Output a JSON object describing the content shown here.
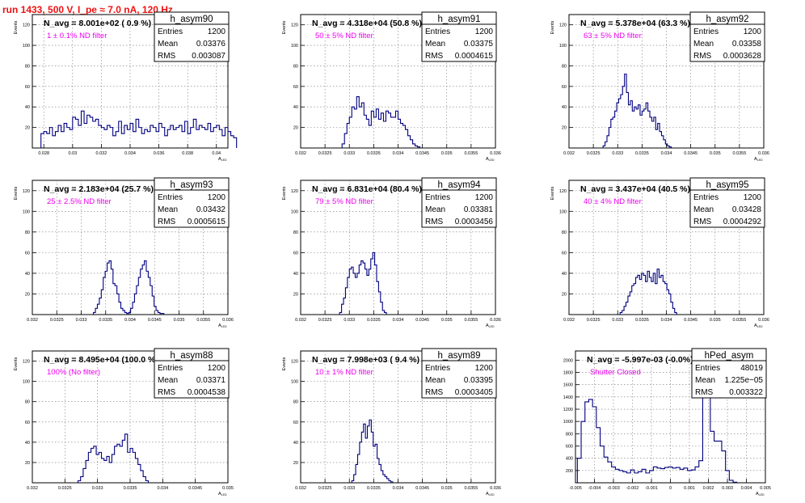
{
  "run_title": "run 1433,   500 V, I_pe ≈ 7.0 nA, 120 Hz",
  "chart_data": [
    {
      "type": "bar",
      "name": "h_asym90",
      "n_avg_label": "N_avg = 8.001e+02 ( 0.9 %)",
      "filter_label": "1 ± 0.1% ND filter",
      "stats": {
        "entries": "1200",
        "mean": "0.03376",
        "rms": "0.003087"
      },
      "xlabel": "A_LED",
      "ylabel": "Events",
      "x_ticks": [
        "0.028",
        "0.03",
        "0.032",
        "0.034",
        "0.036",
        "0.038",
        "0.04"
      ],
      "y_ticks": [
        "20",
        "40",
        "60",
        "80",
        "100",
        "120"
      ],
      "xlim": [
        0.0272,
        0.0408
      ],
      "ylim": [
        0,
        130
      ],
      "bins_x0": 0.0278,
      "bins_width": 0.0002,
      "values": [
        14,
        16,
        14,
        20,
        12,
        16,
        22,
        16,
        24,
        20,
        18,
        30,
        28,
        22,
        36,
        24,
        32,
        30,
        26,
        28,
        22,
        20,
        18,
        22,
        20,
        12,
        16,
        26,
        14,
        22,
        18,
        24,
        16,
        28,
        20,
        14,
        18,
        16,
        22,
        20,
        16,
        24,
        20,
        12,
        18,
        22,
        18,
        20,
        22,
        16,
        26,
        14,
        20,
        28,
        18,
        22,
        20,
        18,
        24,
        16,
        20,
        22,
        18,
        12,
        20,
        16,
        12,
        10
      ]
    },
    {
      "type": "bar",
      "name": "h_asym91",
      "n_avg_label": "N_avg = 4.318e+04 (50.8 %)",
      "filter_label": "50 ± 5% ND filter",
      "stats": {
        "entries": "1200",
        "mean": "0.03375",
        "rms": "0.0004615"
      },
      "xlabel": "A_LED",
      "ylabel": "Events",
      "x_ticks": [
        "0.032",
        "0.0325",
        "0.033",
        "0.0335",
        "0.034",
        "0.0345",
        "0.035",
        "0.0355",
        "0.036"
      ],
      "y_ticks": [
        "20",
        "40",
        "60",
        "80",
        "100",
        "120"
      ],
      "xlim": [
        0.032,
        0.036
      ],
      "ylim": [
        0,
        130
      ],
      "bins_x0": 0.03285,
      "bins_width": 5e-05,
      "values": [
        4,
        14,
        24,
        30,
        40,
        38,
        50,
        40,
        44,
        32,
        28,
        22,
        36,
        30,
        38,
        28,
        34,
        26,
        36,
        34,
        30,
        30,
        36,
        28,
        24,
        22,
        18,
        12,
        8,
        4,
        2,
        1
      ]
    },
    {
      "type": "bar",
      "name": "h_asym92",
      "n_avg_label": "N_avg = 5.378e+04 (63.3 %)",
      "filter_label": "63 ± 5% ND filter",
      "stats": {
        "entries": "1200",
        "mean": "0.03358",
        "rms": "0.0003628"
      },
      "xlabel": "A_LED",
      "ylabel": "Events",
      "x_ticks": [
        "0.032",
        "0.0325",
        "0.033",
        "0.0335",
        "0.034",
        "0.0345",
        "0.035",
        "0.0355",
        "0.036"
      ],
      "y_ticks": [
        "20",
        "40",
        "60",
        "80",
        "100",
        "120"
      ],
      "xlim": [
        0.032,
        0.036
      ],
      "ylim": [
        0,
        130
      ],
      "bins_x0": 0.0327,
      "bins_width": 4e-05,
      "values": [
        2,
        6,
        12,
        20,
        28,
        30,
        36,
        44,
        48,
        52,
        60,
        72,
        54,
        42,
        46,
        36,
        40,
        38,
        42,
        32,
        36,
        38,
        44,
        36,
        30,
        26,
        30,
        18,
        24,
        16,
        12,
        8,
        4,
        2,
        1
      ]
    },
    {
      "type": "bar",
      "name": "h_asym93",
      "n_avg_label": "N_avg = 2.183e+04 (25.7 %)",
      "filter_label": "25 ± 2.5% ND filter",
      "stats": {
        "entries": "1200",
        "mean": "0.03432",
        "rms": "0.0005615"
      },
      "xlabel": "A_LED",
      "ylabel": "Events",
      "x_ticks": [
        "0.032",
        "0.0325",
        "0.033",
        "0.0335",
        "0.034",
        "0.0345",
        "0.035",
        "0.0355",
        "0.036"
      ],
      "y_ticks": [
        "20",
        "40",
        "60",
        "80",
        "100",
        "120"
      ],
      "xlim": [
        0.032,
        0.036
      ],
      "ylim": [
        0,
        130
      ],
      "bins_x0": 0.03325,
      "bins_width": 4e-05,
      "values": [
        2,
        6,
        10,
        16,
        24,
        36,
        42,
        50,
        52,
        44,
        30,
        28,
        20,
        12,
        6,
        4,
        2,
        1,
        2,
        6,
        12,
        20,
        28,
        36,
        44,
        48,
        52,
        42,
        36,
        28,
        18,
        8,
        4,
        2,
        1,
        1
      ]
    },
    {
      "type": "bar",
      "name": "h_asym94",
      "n_avg_label": "N_avg = 6.831e+04 (80.4 %)",
      "filter_label": "79 ± 5% ND filter",
      "stats": {
        "entries": "1200",
        "mean": "0.03381",
        "rms": "0.0003456"
      },
      "xlabel": "A_LED",
      "ylabel": "Events",
      "x_ticks": [
        "0.032",
        "0.0325",
        "0.033",
        "0.0335",
        "0.034",
        "0.0345",
        "0.035",
        "0.0355",
        "0.036"
      ],
      "y_ticks": [
        "20",
        "40",
        "60",
        "80",
        "100",
        "120"
      ],
      "xlim": [
        0.032,
        0.036
      ],
      "ylim": [
        0,
        130
      ],
      "bins_x0": 0.0328,
      "bins_width": 4e-05,
      "values": [
        2,
        10,
        16,
        26,
        36,
        44,
        46,
        40,
        36,
        40,
        48,
        52,
        50,
        44,
        38,
        44,
        54,
        60,
        48,
        32,
        22,
        12,
        4,
        2
      ]
    },
    {
      "type": "bar",
      "name": "h_asym95",
      "n_avg_label": "N_avg = 3.437e+04 (40.5 %)",
      "filter_label": "40 ± 4% ND filter",
      "stats": {
        "entries": "1200",
        "mean": "0.03428",
        "rms": "0.0004292"
      },
      "xlabel": "A_LED",
      "ylabel": "Events",
      "x_ticks": [
        "0.032",
        "0.0325",
        "0.033",
        "0.0335",
        "0.034",
        "0.0345",
        "0.035",
        "0.0355",
        "0.036"
      ],
      "y_ticks": [
        "20",
        "40",
        "60",
        "80",
        "100",
        "120"
      ],
      "xlim": [
        0.032,
        0.036
      ],
      "ylim": [
        0,
        130
      ],
      "bins_x0": 0.03305,
      "bins_width": 4e-05,
      "values": [
        2,
        4,
        8,
        12,
        18,
        22,
        28,
        30,
        36,
        38,
        34,
        40,
        38,
        32,
        42,
        36,
        32,
        40,
        30,
        44,
        36,
        38,
        32,
        30,
        24,
        20,
        12,
        6,
        2
      ]
    },
    {
      "type": "bar",
      "name": "h_asym88",
      "n_avg_label": "N_avg = 8.495e+04 (100.0 %)",
      "filter_label": "100% (No filter)",
      "stats": {
        "entries": "1200",
        "mean": "0.03371",
        "rms": "0.0004538"
      },
      "xlabel": "A_LED",
      "ylabel": "Events",
      "x_ticks": [
        "0.032",
        "0.0325",
        "0.033",
        "0.0335",
        "0.034",
        "0.0345",
        "0.035"
      ],
      "y_ticks": [
        "20",
        "40",
        "60",
        "80",
        "100",
        "120"
      ],
      "xlim": [
        0.032,
        0.035
      ],
      "ylim": [
        0,
        130
      ],
      "bins_x0": 0.0327,
      "bins_width": 4e-05,
      "values": [
        2,
        6,
        14,
        22,
        30,
        34,
        36,
        28,
        30,
        24,
        22,
        26,
        20,
        28,
        36,
        38,
        36,
        42,
        48,
        30,
        34,
        30,
        24,
        18,
        12,
        6,
        2
      ]
    },
    {
      "type": "bar",
      "name": "h_asym89",
      "n_avg_label": "N_avg = 7.998e+03 ( 9.4 %)",
      "filter_label": "10 ± 1% ND filter",
      "stats": {
        "entries": "1200",
        "mean": "0.03395",
        "rms": "0.0003405"
      },
      "xlabel": "A_LED",
      "ylabel": "Events",
      "x_ticks": [
        "0.032",
        "0.0325",
        "0.033",
        "0.0335",
        "0.034",
        "0.0345",
        "0.035",
        "0.0355",
        "0.036"
      ],
      "y_ticks": [
        "20",
        "40",
        "60",
        "80",
        "100",
        "120"
      ],
      "xlim": [
        0.032,
        0.036
      ],
      "ylim": [
        0,
        130
      ],
      "bins_x0": 0.03305,
      "bins_width": 4e-05,
      "values": [
        2,
        8,
        18,
        28,
        40,
        50,
        58,
        44,
        56,
        62,
        50,
        36,
        38,
        24,
        18,
        12,
        8,
        6,
        4,
        2,
        1
      ]
    },
    {
      "type": "bar",
      "name": "hPed_asym",
      "n_avg_label": "N_avg = -5.997e-03 (-0.0%)",
      "filter_label": "Shutter Closed",
      "stats": {
        "entries": "48019",
        "mean": "1.225e−05",
        "rms": "0.003322"
      },
      "xlabel": "A_LED",
      "ylabel": "",
      "x_ticks": [
        "-0.005",
        "-0.004",
        "-0.003",
        "-0.002",
        "-0.001",
        "0",
        "0.001",
        "0.002",
        "0.003",
        "0.004",
        "0.005"
      ],
      "y_ticks": [
        "200",
        "400",
        "600",
        "800",
        "1000",
        "1200",
        "1400",
        "1600",
        "1800",
        "2000"
      ],
      "xlim": [
        -0.005,
        0.005
      ],
      "ylim": [
        0,
        2150
      ],
      "bins_x0": -0.0049,
      "bins_width": 0.0002,
      "values": [
        400,
        1000,
        1320,
        1360,
        1240,
        900,
        600,
        420,
        340,
        260,
        220,
        200,
        180,
        160,
        210,
        160,
        180,
        220,
        160,
        200,
        260,
        240,
        230,
        250,
        260,
        240,
        250,
        220,
        240,
        200,
        210,
        260,
        360,
        1520,
        1540,
        840,
        680,
        680,
        520,
        200,
        40,
        10
      ]
    }
  ]
}
